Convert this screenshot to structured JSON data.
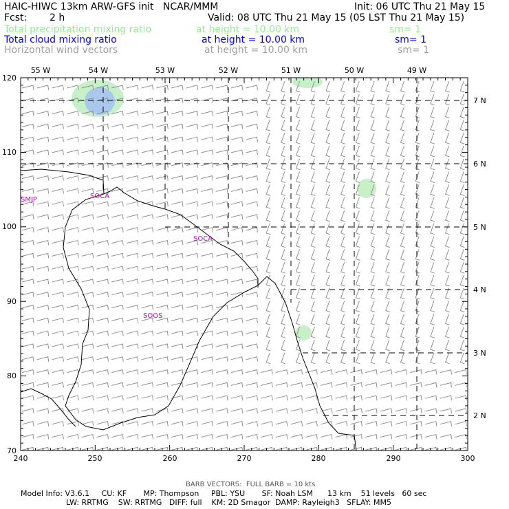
{
  "header": {
    "line1_left": "HAIC-HIWC 13km ARW-GFS init   NCAR/MMM",
    "line1_right": "Init: 06 UTC Thu 21 May 15",
    "fcst_label": "Fcst:",
    "fcst_value": "2 h",
    "valid": "Valid: 08 UTC Thu 21 May 15 (05 LST Thu 21 May 15)"
  },
  "fields": [
    {
      "name": "Total precipitation mixing ratio",
      "height": "at height = 10.00 km",
      "sm": "sm= 1",
      "color": "#90ee90"
    },
    {
      "name": "Total cloud mixing ratio",
      "height": "at height = 10.00 km",
      "sm": "sm= 1",
      "color": "#0000ff"
    },
    {
      "name": "Horizontal wind vectors",
      "height": "at height = 10.00 km",
      "sm": "sm= 1",
      "color": "#a0a0a0"
    }
  ],
  "map": {
    "x_ticks": [
      "240",
      "250",
      "260",
      "270",
      "280",
      "290",
      "300"
    ],
    "y_ticks": [
      "70",
      "80",
      "90",
      "100",
      "110",
      "120"
    ],
    "lon_labels": [
      "55 W",
      "54 W",
      "53 W",
      "52 W",
      "51 W",
      "50 W",
      "49 W"
    ],
    "lat_labels": [
      "7 N",
      "6 N",
      "5 N",
      "4 N",
      "3 N",
      "2 N"
    ],
    "sites": [
      "SMJP",
      "SOCA",
      "SOCA",
      "SOOS"
    ],
    "colors": {
      "precip_fill": "#c8f0c8",
      "cloud_fill": "#aac8ee",
      "barb": "#909090",
      "coast": "#000000",
      "grid": "#000000",
      "site": "#cc00cc"
    }
  },
  "footer": {
    "barb_note": "BARB VECTORS:  FULL BARB = 10 kts",
    "model_line1": "Model Info: V3.6.1     CU: KF       MP: Thompson     PBL: YSU       SF: Noah LSM      13 km    51 levels   60 sec",
    "model_line2": "LW: RRTMG    SW: RRTMG   DIFF: full    KM: 2D Smagor  DAMP: Rayleigh3   SFLAY: MM5"
  }
}
